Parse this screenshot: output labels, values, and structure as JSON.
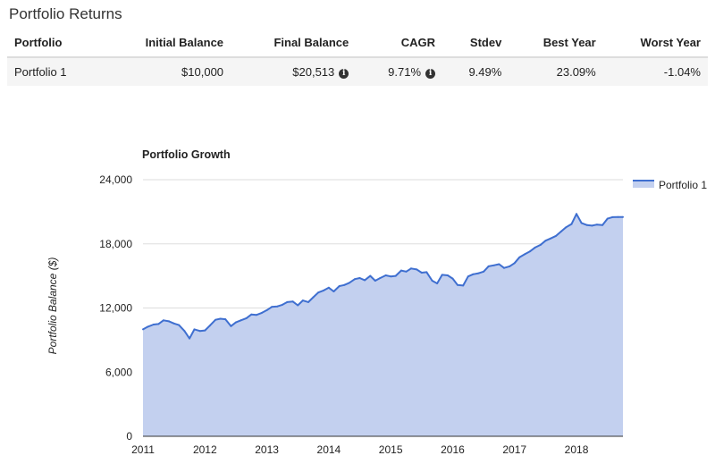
{
  "header": {
    "title": "Portfolio Returns"
  },
  "table": {
    "columns": [
      "Portfolio",
      "Initial Balance",
      "Final Balance",
      "CAGR",
      "Stdev",
      "Best Year",
      "Worst Year"
    ],
    "rows": [
      {
        "portfolio": "Portfolio 1",
        "initial_balance": "$10,000",
        "final_balance": "$20,513",
        "cagr": "9.71%",
        "stdev": "9.49%",
        "best_year": "23.09%",
        "worst_year": "-1.04%"
      }
    ],
    "info_icon_glyph": "i"
  },
  "chart_data": {
    "type": "area",
    "title": "Portfolio Growth",
    "xlabel": "",
    "ylabel": "Portfolio Balance ($)",
    "ylim": [
      0,
      24000
    ],
    "y_ticks": [
      "0",
      "6,000",
      "12,000",
      "18,000",
      "24,000"
    ],
    "x_ticks": [
      "2011",
      "2012",
      "2013",
      "2014",
      "2015",
      "2016",
      "2017",
      "2018"
    ],
    "xlim": [
      2011.0,
      2018.75
    ],
    "grid": true,
    "legend_position": "top-right",
    "series": [
      {
        "name": "Portfolio 1",
        "color": "#3f6fd0",
        "fill": "#c3d0ef",
        "x": [
          2011.0,
          2011.08,
          2011.17,
          2011.25,
          2011.33,
          2011.42,
          2011.5,
          2011.58,
          2011.67,
          2011.75,
          2011.83,
          2011.92,
          2012.0,
          2012.08,
          2012.17,
          2012.25,
          2012.33,
          2012.42,
          2012.5,
          2012.58,
          2012.67,
          2012.75,
          2012.83,
          2012.92,
          2013.0,
          2013.08,
          2013.17,
          2013.25,
          2013.33,
          2013.42,
          2013.5,
          2013.58,
          2013.67,
          2013.75,
          2013.83,
          2013.92,
          2014.0,
          2014.08,
          2014.17,
          2014.25,
          2014.33,
          2014.42,
          2014.5,
          2014.58,
          2014.67,
          2014.75,
          2014.83,
          2014.92,
          2015.0,
          2015.08,
          2015.17,
          2015.25,
          2015.33,
          2015.42,
          2015.5,
          2015.58,
          2015.67,
          2015.75,
          2015.83,
          2015.92,
          2016.0,
          2016.08,
          2016.17,
          2016.25,
          2016.33,
          2016.42,
          2016.5,
          2016.58,
          2016.67,
          2016.75,
          2016.83,
          2016.92,
          2017.0,
          2017.08,
          2017.17,
          2017.25,
          2017.33,
          2017.42,
          2017.5,
          2017.58,
          2017.67,
          2017.75,
          2017.83,
          2017.92,
          2018.0,
          2018.08,
          2018.17,
          2018.25,
          2018.33,
          2018.42,
          2018.5,
          2018.58,
          2018.67,
          2018.75
        ],
        "values": [
          10000,
          10250,
          10450,
          10500,
          10850,
          10750,
          10550,
          10400,
          9850,
          9150,
          10000,
          9850,
          9900,
          10350,
          10900,
          11000,
          10950,
          10300,
          10650,
          10850,
          11050,
          11400,
          11350,
          11550,
          11800,
          12100,
          12150,
          12300,
          12550,
          12600,
          12250,
          12700,
          12550,
          13000,
          13450,
          13650,
          13900,
          13550,
          14050,
          14150,
          14350,
          14700,
          14800,
          14600,
          15000,
          14550,
          14800,
          15050,
          14950,
          15000,
          15500,
          15400,
          15700,
          15600,
          15300,
          15350,
          14550,
          14300,
          15100,
          15050,
          14750,
          14150,
          14100,
          14950,
          15150,
          15250,
          15400,
          15900,
          16000,
          16100,
          15750,
          15900,
          16200,
          16750,
          17050,
          17300,
          17650,
          17900,
          18300,
          18500,
          18750,
          19150,
          19550,
          19850,
          20800,
          19950,
          19750,
          19700,
          19800,
          19750,
          20350,
          20500,
          20513,
          20513
        ]
      }
    ]
  }
}
